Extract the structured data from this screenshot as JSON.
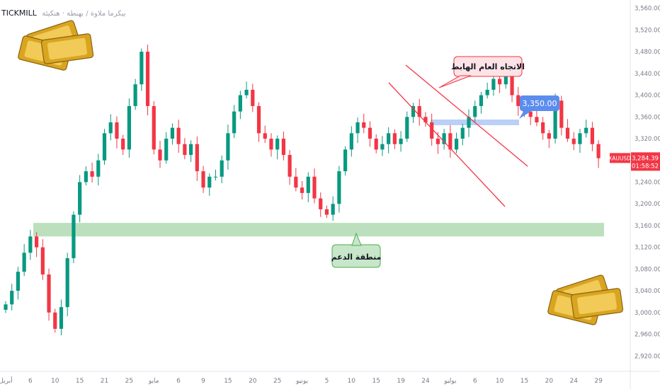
{
  "header": {
    "broker": "TICKMILL",
    "subtitle": "بيكرما ملاوة / بهنطة · هنكيئة"
  },
  "price_badge": {
    "symbol": "XAUUSD",
    "price": "3,284.39",
    "timer": "01:58:52",
    "color": "#f23645"
  },
  "annotations": {
    "downtrend_label": "الاتجاه العام الهابط",
    "target_label": "3,350.00",
    "support_label": "منطقة الدعم"
  },
  "colors": {
    "up": "#089981",
    "down": "#f23645",
    "trend": "#f23645",
    "support": "#a5d6a7",
    "target_zone": "#aec8f5",
    "target_badge": "#5b8def"
  },
  "chart_data": {
    "type": "candlestick",
    "y_ticks": [
      "2,920.00",
      "2,960.00",
      "3,000.00",
      "3,040.00",
      "3,080.00",
      "3,120.00",
      "3,160.00",
      "3,200.00",
      "3,240.00",
      "3,280.00",
      "3,320.00",
      "3,360.00",
      "3,400.00",
      "3,440.00",
      "3,480.00",
      "3,520.00",
      "3,560.00"
    ],
    "y_tick_values": [
      2920,
      2960,
      3000,
      3040,
      3080,
      3120,
      3160,
      3200,
      3240,
      3280,
      3320,
      3360,
      3400,
      3440,
      3480,
      3520,
      3560
    ],
    "x_ticks": [
      {
        "label": "أبريل",
        "i": 0
      },
      {
        "label": "6",
        "i": 4
      },
      {
        "label": "10",
        "i": 8
      },
      {
        "label": "15",
        "i": 12
      },
      {
        "label": "21",
        "i": 16
      },
      {
        "label": "25",
        "i": 20
      },
      {
        "label": "مايو",
        "i": 24
      },
      {
        "label": "6",
        "i": 28
      },
      {
        "label": "9",
        "i": 32
      },
      {
        "label": "15",
        "i": 36
      },
      {
        "label": "20",
        "i": 40
      },
      {
        "label": "25",
        "i": 44
      },
      {
        "label": "يونيو",
        "i": 48
      },
      {
        "label": "5",
        "i": 52
      },
      {
        "label": "10",
        "i": 56
      },
      {
        "label": "15",
        "i": 60
      },
      {
        "label": "19",
        "i": 64
      },
      {
        "label": "24",
        "i": 68
      },
      {
        "label": "يوليو",
        "i": 72
      },
      {
        "label": "6",
        "i": 76
      },
      {
        "label": "10",
        "i": 80
      },
      {
        "label": "15",
        "i": 84
      },
      {
        "label": "20",
        "i": 88
      },
      {
        "label": "24",
        "i": 92
      },
      {
        "label": "29",
        "i": 96
      }
    ],
    "close": [
      3015,
      3040,
      3075,
      3110,
      3140,
      3120,
      3070,
      3000,
      2970,
      3010,
      3100,
      3180,
      3240,
      3260,
      3250,
      3280,
      3330,
      3350,
      3320,
      3300,
      3380,
      3420,
      3480,
      3380,
      3300,
      3280,
      3320,
      3340,
      3310,
      3290,
      3310,
      3260,
      3230,
      3250,
      3250,
      3280,
      3330,
      3370,
      3400,
      3410,
      3380,
      3330,
      3320,
      3300,
      3320,
      3290,
      3250,
      3230,
      3220,
      3250,
      3210,
      3190,
      3180,
      3200,
      3260,
      3300,
      3330,
      3350,
      3340,
      3320,
      3300,
      3310,
      3330,
      3310,
      3320,
      3360,
      3380,
      3360,
      3350,
      3320,
      3310,
      3330,
      3300,
      3320,
      3340,
      3360,
      3380,
      3400,
      3410,
      3430,
      3420,
      3440,
      3400,
      3380,
      3370,
      3360,
      3350,
      3330,
      3320,
      3390,
      3340,
      3320,
      3310,
      3330,
      3340,
      3310,
      3284
    ],
    "current_price": 3284.39,
    "support_zone": [
      3140,
      3165
    ],
    "target": 3350.0,
    "ylim": [
      2910,
      3570
    ],
    "grid": false
  }
}
